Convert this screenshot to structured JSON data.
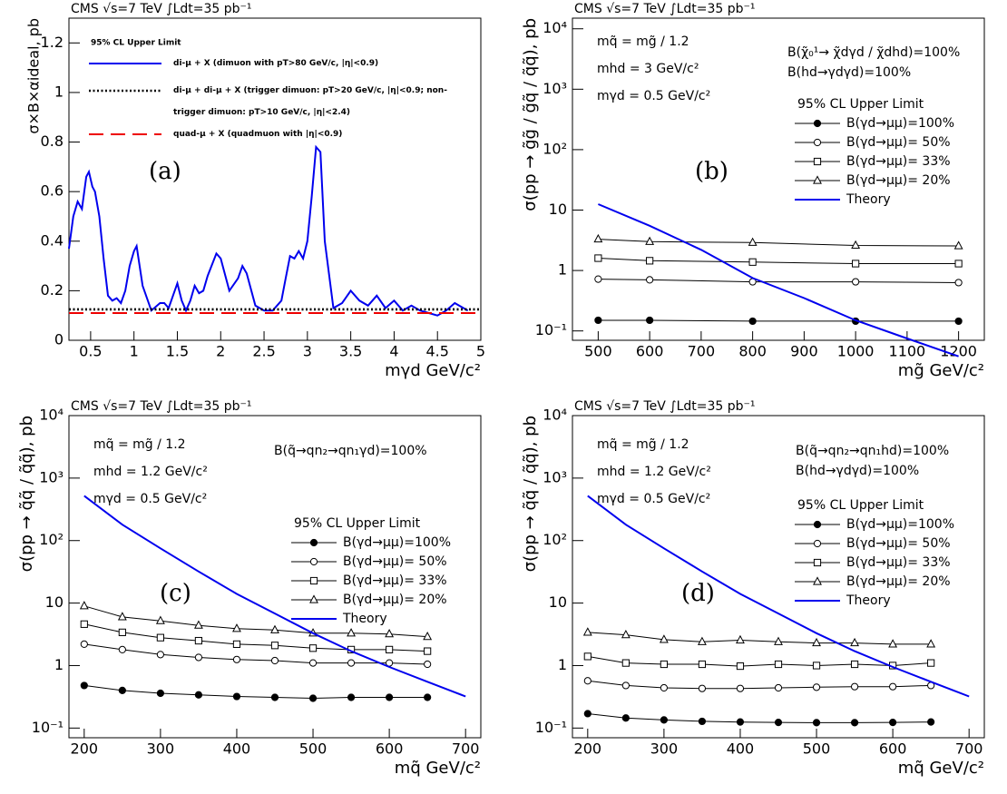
{
  "chart_data": [
    {
      "type": "line",
      "header": "CMS   √s=7 TeV   ∫Ldt=35 pb⁻¹",
      "panel_label": "(a)",
      "y_label": "σ×B×αideal, pb",
      "x_label": "mγd  GeV/c²",
      "xlim": [
        0.25,
        5
      ],
      "ylim": [
        0,
        1.3
      ],
      "xticks": [
        0.5,
        1,
        1.5,
        2,
        2.5,
        3,
        3.5,
        4,
        4.5,
        5
      ],
      "yticks": [
        0,
        0.2,
        0.4,
        0.6,
        0.8,
        1,
        1.2
      ],
      "legend": "upper left",
      "legend_title": "95% CL Upper Limit",
      "series": [
        {
          "name": "di-μ + X (dimuon with pT>80 GeV/c, |η|<0.9)",
          "color": "#0000ee",
          "style": "solid",
          "x": [
            0.25,
            0.3,
            0.35,
            0.4,
            0.45,
            0.48,
            0.52,
            0.55,
            0.6,
            0.65,
            0.7,
            0.75,
            0.8,
            0.85,
            0.9,
            0.95,
            1.0,
            1.03,
            1.1,
            1.2,
            1.3,
            1.35,
            1.4,
            1.45,
            1.5,
            1.55,
            1.6,
            1.65,
            1.7,
            1.75,
            1.8,
            1.85,
            1.95,
            2.0,
            2.1,
            2.2,
            2.25,
            2.3,
            2.4,
            2.5,
            2.6,
            2.7,
            2.75,
            2.8,
            2.85,
            2.9,
            2.95,
            3.0,
            3.05,
            3.1,
            3.15,
            3.2,
            3.3,
            3.4,
            3.5,
            3.6,
            3.7,
            3.8,
            3.9,
            4.0,
            4.1,
            4.2,
            4.3,
            4.4,
            4.5,
            4.6,
            4.7,
            4.8,
            4.85
          ],
          "values": [
            0.37,
            0.5,
            0.56,
            0.53,
            0.66,
            0.68,
            0.62,
            0.6,
            0.5,
            0.33,
            0.18,
            0.16,
            0.17,
            0.15,
            0.2,
            0.3,
            0.36,
            0.38,
            0.22,
            0.12,
            0.15,
            0.15,
            0.13,
            0.18,
            0.23,
            0.16,
            0.12,
            0.16,
            0.22,
            0.19,
            0.2,
            0.26,
            0.35,
            0.33,
            0.2,
            0.25,
            0.3,
            0.27,
            0.14,
            0.12,
            0.12,
            0.16,
            0.25,
            0.34,
            0.33,
            0.36,
            0.33,
            0.4,
            0.58,
            0.78,
            0.76,
            0.4,
            0.13,
            0.15,
            0.2,
            0.16,
            0.14,
            0.18,
            0.13,
            0.16,
            0.12,
            0.14,
            0.12,
            0.11,
            0.1,
            0.12,
            0.15,
            0.13,
            0.12
          ]
        },
        {
          "name": "di-μ + di-μ + X (trigger dimuon: pT>20 GeV/c, |η|<0.9; non-trigger dimuon: pT>10 GeV/c, |η|<2.4)",
          "color": "#000000",
          "style": "dotted",
          "x": [
            0.25,
            5
          ],
          "values": [
            0.125,
            0.125
          ]
        },
        {
          "name": "quad-μ + X (quadmuon with |η|<0.9)",
          "color": "#ee0000",
          "style": "dashed",
          "x": [
            0.25,
            5
          ],
          "values": [
            0.11,
            0.11
          ]
        }
      ]
    },
    {
      "type": "line",
      "header": "CMS   √s=7 TeV   ∫Ldt=35 pb⁻¹",
      "panel_label": "(b)",
      "y_label": "σ(pp → g̃g̃ / g̃q̃ / q̃q̃), pb",
      "x_label": "mg̃  GeV/c²",
      "log_y": true,
      "xlim": [
        450,
        1250
      ],
      "ylim": [
        0.07,
        15000
      ],
      "xticks": [
        500,
        600,
        700,
        800,
        900,
        1000,
        1100,
        1200
      ],
      "yticks": [
        {
          "value": 0.1,
          "label": "10⁻¹"
        },
        1,
        10,
        {
          "value": 100,
          "label": "10²"
        },
        {
          "value": 1000,
          "label": "10³"
        },
        {
          "value": 10000,
          "label": "10⁴"
        }
      ],
      "annotations": [
        "mq̃ = mg̃ / 1.2",
        "mhd = 3 GeV/c²",
        "mγd = 0.5 GeV/c²"
      ],
      "branching": [
        "B(χ̃₀¹→ χ̃dγd / χ̃dhd)=100%",
        "B(hd→γdγd)=100%"
      ],
      "legend": "upper right",
      "legend_title": "95% CL Upper Limit",
      "x": [
        500,
        600,
        800,
        1000,
        1200
      ],
      "series": [
        {
          "name": "B(γd→μμ)=100%",
          "color": "#000000",
          "marker": "filled-circle",
          "values": [
            0.15,
            0.15,
            0.145,
            0.145,
            0.145
          ]
        },
        {
          "name": "B(γd→μμ)= 50%",
          "color": "#000000",
          "marker": "open-circle",
          "values": [
            0.72,
            0.7,
            0.65,
            0.65,
            0.63
          ]
        },
        {
          "name": "B(γd→μμ)= 33%",
          "color": "#000000",
          "marker": "open-square",
          "values": [
            1.6,
            1.45,
            1.38,
            1.3,
            1.3
          ]
        },
        {
          "name": "B(γd→μμ)= 20%",
          "color": "#000000",
          "marker": "open-triangle",
          "values": [
            3.3,
            3.0,
            2.9,
            2.6,
            2.55
          ]
        },
        {
          "name": "Theory",
          "color": "#0000ee",
          "style": "solid",
          "x": [
            500,
            600,
            700,
            800,
            900,
            1000,
            1100,
            1200
          ],
          "values": [
            12.5,
            5.5,
            2.2,
            0.75,
            0.35,
            0.15,
            0.075,
            0.038
          ]
        }
      ]
    },
    {
      "type": "line",
      "header": "CMS   √s=7 TeV   ∫Ldt=35 pb⁻¹",
      "panel_label": "(c)",
      "y_label": "σ(pp → q̃q̃ / q̃q̃), pb",
      "x_label": "mq̃  GeV/c²",
      "log_y": true,
      "xlim": [
        180,
        720
      ],
      "ylim": [
        0.07,
        10000
      ],
      "xticks": [
        200,
        300,
        400,
        500,
        600,
        700
      ],
      "yticks": [
        {
          "value": 0.1,
          "label": "10⁻¹"
        },
        1,
        10,
        {
          "value": 100,
          "label": "10²"
        },
        {
          "value": 1000,
          "label": "10³"
        },
        {
          "value": 10000,
          "label": "10⁴"
        }
      ],
      "annotations": [
        "mq̃ = mg̃ / 1.2",
        "mhd = 1.2 GeV/c²",
        "mγd = 0.5 GeV/c²"
      ],
      "branching": [
        "B(q̃→qn₂→qn₁γd)=100%"
      ],
      "legend": "upper right",
      "legend_title": "95% CL Upper Limit",
      "x": [
        200,
        250,
        300,
        350,
        400,
        450,
        500,
        550,
        600,
        650
      ],
      "series": [
        {
          "name": "B(γd→μμ)=100%",
          "color": "#000000",
          "marker": "filled-circle",
          "values": [
            0.48,
            0.4,
            0.36,
            0.34,
            0.32,
            0.31,
            0.3,
            0.31,
            0.31,
            0.31
          ]
        },
        {
          "name": "B(γd→μμ)= 50%",
          "color": "#000000",
          "marker": "open-circle",
          "values": [
            2.2,
            1.8,
            1.5,
            1.35,
            1.25,
            1.2,
            1.1,
            1.1,
            1.1,
            1.05
          ]
        },
        {
          "name": "B(γd→μμ)= 33%",
          "color": "#000000",
          "marker": "open-square",
          "values": [
            4.6,
            3.4,
            2.8,
            2.5,
            2.2,
            2.1,
            1.9,
            1.8,
            1.8,
            1.7
          ]
        },
        {
          "name": "B(γd→μμ)= 20%",
          "color": "#000000",
          "marker": "open-triangle",
          "values": [
            9,
            6,
            5.2,
            4.4,
            3.9,
            3.7,
            3.3,
            3.3,
            3.2,
            2.9
          ]
        },
        {
          "name": "Theory",
          "color": "#0000ee",
          "style": "solid",
          "x": [
            200,
            250,
            300,
            350,
            400,
            450,
            500,
            550,
            600,
            650,
            700
          ],
          "values": [
            520,
            180,
            75,
            32,
            14,
            6.8,
            3.3,
            1.7,
            0.95,
            0.55,
            0.32
          ]
        }
      ]
    },
    {
      "type": "line",
      "header": "CMS   √s=7 TeV   ∫Ldt=35 pb⁻¹",
      "panel_label": "(d)",
      "y_label": "σ(pp → q̃q̃ / q̃q̃), pb",
      "x_label": "mq̃  GeV/c²",
      "log_y": true,
      "xlim": [
        180,
        720
      ],
      "ylim": [
        0.07,
        10000
      ],
      "xticks": [
        200,
        300,
        400,
        500,
        600,
        700
      ],
      "yticks": [
        {
          "value": 0.1,
          "label": "10⁻¹"
        },
        1,
        10,
        {
          "value": 100,
          "label": "10²"
        },
        {
          "value": 1000,
          "label": "10³"
        },
        {
          "value": 10000,
          "label": "10⁴"
        }
      ],
      "annotations": [
        "mq̃ = mg̃ / 1.2",
        "mhd = 1.2 GeV/c²",
        "mγd = 0.5 GeV/c²"
      ],
      "branching": [
        "B(q̃→qn₂→qn₁hd)=100%",
        "B(hd→γdγd)=100%"
      ],
      "legend": "upper right",
      "legend_title": "95% CL Upper Limit",
      "x": [
        200,
        250,
        300,
        350,
        400,
        450,
        500,
        550,
        600,
        650
      ],
      "series": [
        {
          "name": "B(γd→μμ)=100%",
          "color": "#000000",
          "marker": "filled-circle",
          "values": [
            0.17,
            0.145,
            0.135,
            0.128,
            0.125,
            0.123,
            0.122,
            0.122,
            0.123,
            0.125
          ]
        },
        {
          "name": "B(γd→μμ)= 50%",
          "color": "#000000",
          "marker": "open-circle",
          "values": [
            0.57,
            0.48,
            0.44,
            0.43,
            0.43,
            0.44,
            0.45,
            0.46,
            0.46,
            0.48
          ]
        },
        {
          "name": "B(γd→μμ)= 33%",
          "color": "#000000",
          "marker": "open-square",
          "values": [
            1.4,
            1.1,
            1.05,
            1.05,
            0.98,
            1.05,
            1.0,
            1.05,
            1.0,
            1.1
          ]
        },
        {
          "name": "B(γd→μμ)= 20%",
          "color": "#000000",
          "marker": "open-triangle",
          "values": [
            3.4,
            3.1,
            2.6,
            2.4,
            2.55,
            2.4,
            2.3,
            2.3,
            2.2,
            2.2
          ]
        },
        {
          "name": "Theory",
          "color": "#0000ee",
          "style": "solid",
          "x": [
            200,
            250,
            300,
            350,
            400,
            450,
            500,
            550,
            600,
            650,
            700
          ],
          "values": [
            520,
            180,
            75,
            32,
            14,
            6.8,
            3.3,
            1.7,
            0.95,
            0.55,
            0.32
          ]
        }
      ]
    }
  ]
}
